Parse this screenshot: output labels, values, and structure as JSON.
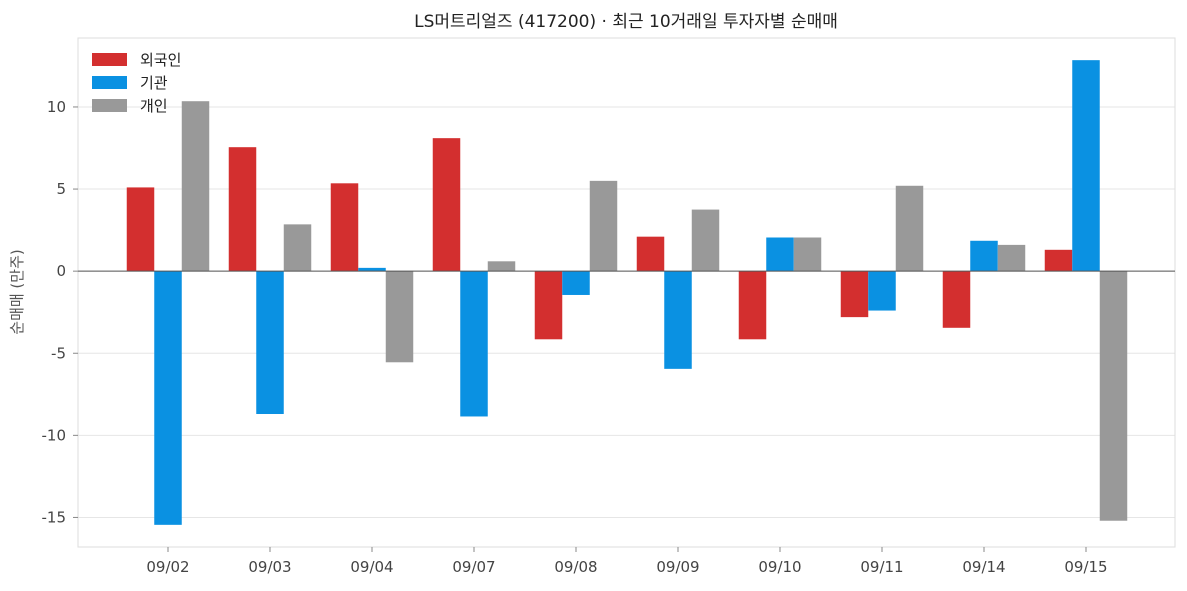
{
  "chart_data": {
    "type": "bar",
    "title": "LS머트리얼즈 (417200) · 최근 10거래일 투자자별 순매매",
    "xlabel": "",
    "ylabel": "순매매 (만주)",
    "categories": [
      "09/02",
      "09/03",
      "09/04",
      "09/07",
      "09/08",
      "09/09",
      "09/10",
      "09/11",
      "09/14",
      "09/15"
    ],
    "series": [
      {
        "name": "외국인",
        "color": "#d32f2f",
        "values": [
          5.1,
          7.55,
          5.35,
          8.1,
          -4.15,
          2.1,
          -4.15,
          -2.8,
          -3.45,
          1.3
        ]
      },
      {
        "name": "기관",
        "color": "#0a91e2",
        "values": [
          -15.45,
          -8.7,
          0.2,
          -8.85,
          -1.45,
          -5.95,
          2.05,
          -2.4,
          1.85,
          12.85
        ]
      },
      {
        "name": "개인",
        "color": "#999999",
        "values": [
          10.35,
          2.85,
          -5.55,
          0.6,
          5.5,
          3.75,
          2.05,
          5.2,
          1.6,
          -15.2
        ]
      }
    ],
    "ylim": [
      -16.8,
      14.2
    ],
    "yticks": [
      -15,
      -10,
      -5,
      0,
      5,
      10
    ],
    "ytick_labels": [
      "-15",
      "-10",
      "-5",
      "0",
      "5",
      "10"
    ],
    "grid": "horizontal",
    "legend_position": "top-left",
    "zero_line": true
  }
}
